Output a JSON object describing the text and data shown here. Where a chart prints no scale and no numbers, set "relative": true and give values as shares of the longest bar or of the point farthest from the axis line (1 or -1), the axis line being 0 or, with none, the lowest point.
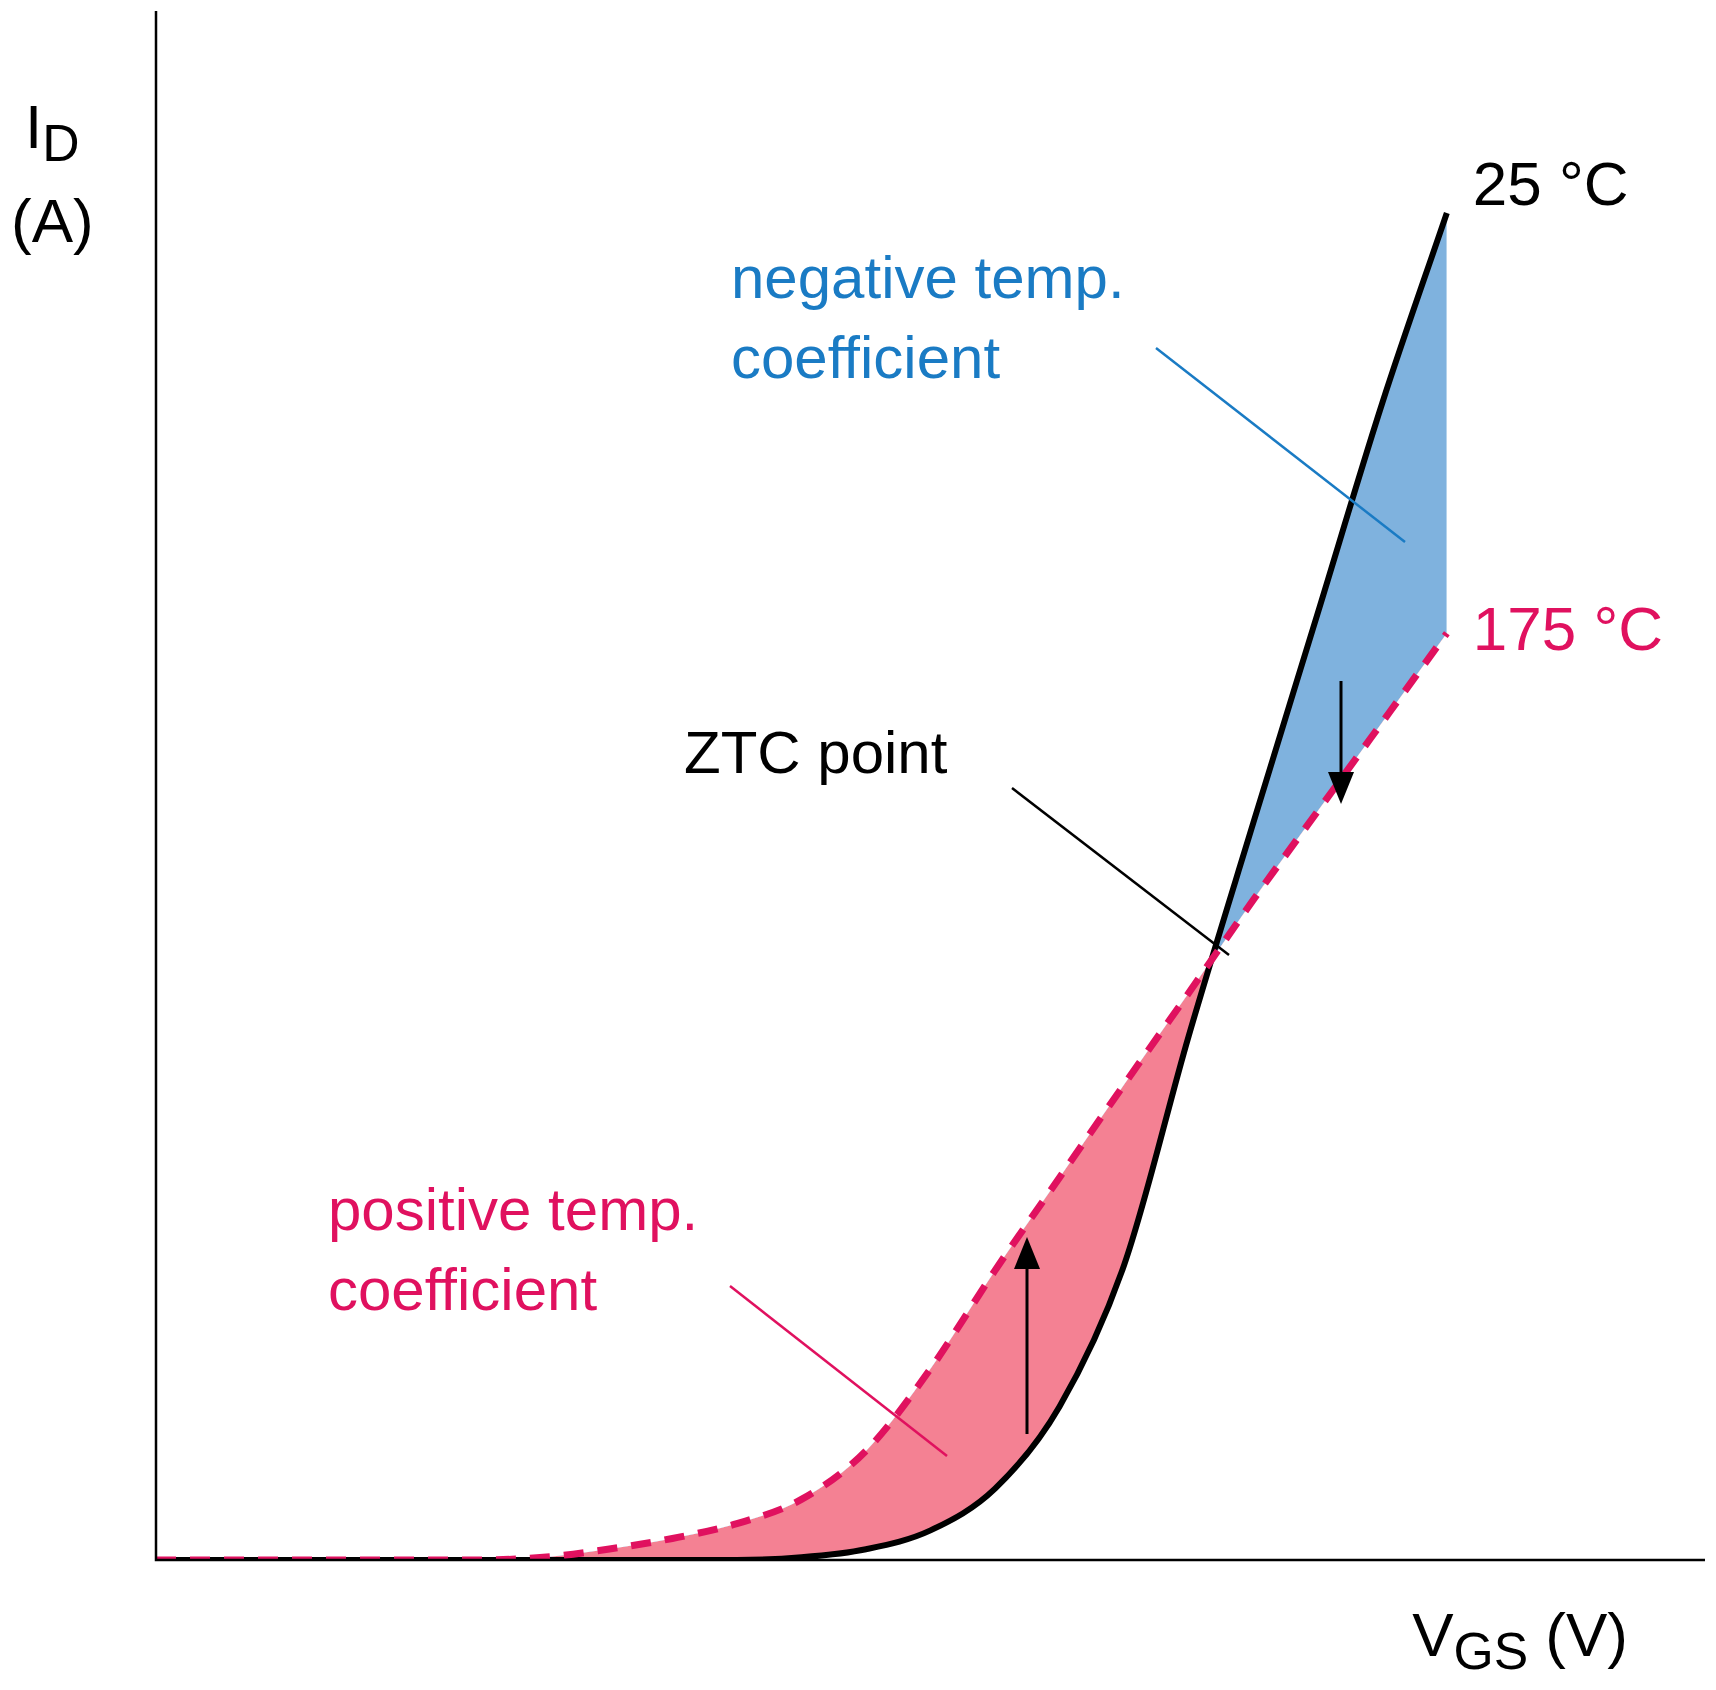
{
  "chart_data": {
    "type": "line",
    "relative": true,
    "xlabel": "V$_{GS}$ (V)",
    "ylabel": "I$_{D}$ (A)",
    "legend": false,
    "marker": "none",
    "categories": [
      null,
      null,
      null,
      null,
      null,
      null,
      null,
      null,
      null,
      null,
      null,
      null,
      null,
      null,
      null,
      null,
      null,
      null,
      null,
      null,
      null,
      null,
      null,
      null,
      null
    ],
    "series": [
      {
        "name": "25 °C",
        "color": "#000000",
        "line_style": "solid",
        "values": [
          0,
          0,
          0,
          0,
          0,
          0,
          0,
          0,
          0,
          0,
          0.002,
          0.008,
          0.022,
          0.053,
          0.114,
          0.219,
          0.389,
          0.547,
          0.703,
          0.859,
          1,
          null,
          null,
          null,
          null
        ]
      },
      {
        "name": "175 °C",
        "color": "#e0115f",
        "line_style": "dashed",
        "values": [
          0,
          0,
          0,
          0,
          0,
          0,
          0.002,
          0.008,
          0.016,
          0.027,
          0.045,
          0.081,
          0.142,
          0.215,
          0.284,
          0.353,
          0.421,
          0.49,
          0.556,
          0.622,
          0.688,
          null,
          null,
          null,
          null
        ]
      }
    ],
    "annotations": [
      "negative temp. coefficient",
      "ZTC point",
      "positive temp. coefficient"
    ]
  }
}
